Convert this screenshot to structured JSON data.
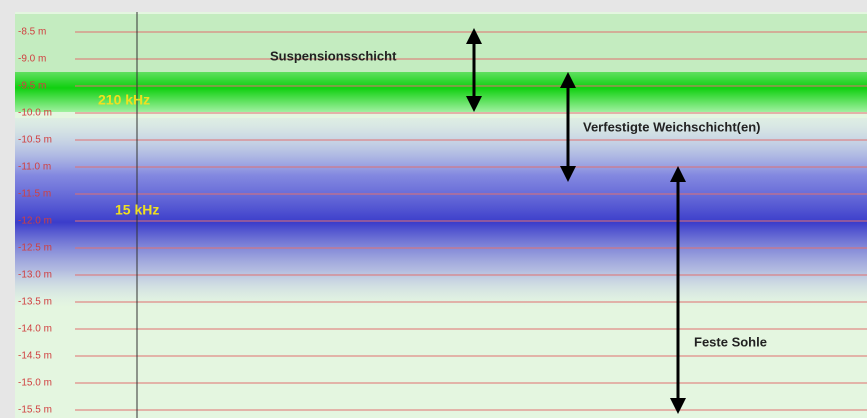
{
  "depth_labels": [
    "-8.5 m",
    "-9.0 m",
    "-9.5 m",
    "-10.0 m",
    "-10.5 m",
    "-11.0 m",
    "-11.5 m",
    "-12.0 m",
    "-12.5 m",
    "-13.0 m",
    "-13.5 m",
    "-14.0 m",
    "-14.5 m",
    "-15.0 m",
    "-15.5 m"
  ],
  "annotations": {
    "suspension": "Suspensionsschicht",
    "freq_high": "210 kHz",
    "soft_layer": "Verfestigte Weichschicht(en)",
    "freq_low": "15 kHz",
    "solid_bed": "Feste Sohle"
  }
}
